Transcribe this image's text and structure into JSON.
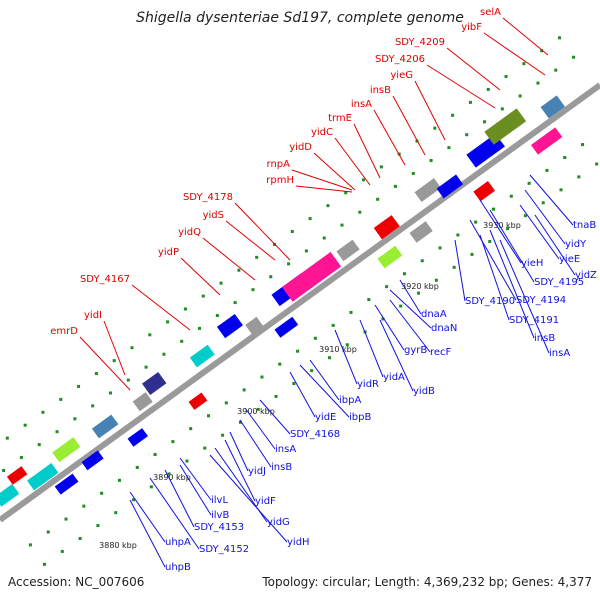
{
  "title": "Shigella dysenteriae Sd197, complete genome",
  "accession": "Accession: NC_007606",
  "summary": "Topology: circular; Length: 4,369,232 bp; Genes: 4,377",
  "colors": {
    "backbone": "#9a9a9a",
    "forward_label": "#e00000",
    "reverse_label": "#1010e0",
    "tick": "#228b22"
  },
  "ticks": [
    "3880 kbp",
    "3890 kbp",
    "3900 kbp",
    "3910 kbp",
    "3920 kbp",
    "3930 kbp"
  ],
  "forward_genes": [
    "selA",
    "yibF",
    "SDY_4209",
    "SDY_4206",
    "yieG",
    "insB",
    "insA",
    "trmE",
    "yidC",
    "yidD",
    "rnpA",
    "rpmH",
    "SDY_4178",
    "yidS",
    "yidQ",
    "yidP",
    "SDY_4167",
    "yidI",
    "emrD"
  ],
  "reverse_genes": [
    "tnaB",
    "yidY",
    "yieE",
    "yidZ",
    "yieH",
    "SDY_4195",
    "SDY_4194",
    "SDY_4190",
    "SDY_4191",
    "insB",
    "insA",
    "dnaA",
    "dnaN",
    "recF",
    "gyrB",
    "yidB",
    "yidA",
    "yidR",
    "ibpA",
    "ibpB",
    "yidE",
    "SDY_4168",
    "insA",
    "insB",
    "yidJ",
    "yidF",
    "yidG",
    "yidH",
    "ilvL",
    "ilvB",
    "SDY_4153",
    "SDY_4152",
    "uhpA",
    "uhpB"
  ]
}
